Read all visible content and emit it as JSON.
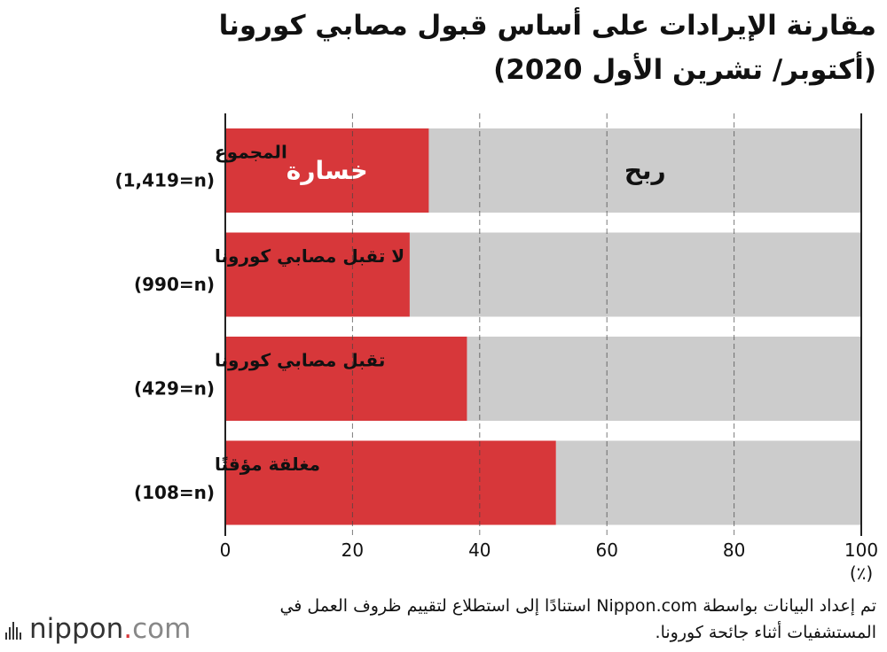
{
  "title": {
    "line1": "مقارنة الإيرادات على أساس قبول مصابي كورونا",
    "line2": "(أكتوبر/ تشرين الأول 2020)"
  },
  "chart_data": {
    "type": "bar",
    "orientation": "horizontal",
    "stacked": true,
    "categories": [
      {
        "label": "المجموع",
        "n": "(1,419=n)"
      },
      {
        "label": "لا تقبل مصابي كورونا",
        "n": "(990=n)"
      },
      {
        "label": "تقبل مصابي كورونا",
        "n": "(429=n)"
      },
      {
        "label": "مغلقة مؤقتًا",
        "n": "(108=n)"
      }
    ],
    "series": [
      {
        "name": "خسارة",
        "color": "#d7373a",
        "values": [
          32,
          29,
          38,
          52
        ]
      },
      {
        "name": "ربح",
        "color": "#cccccc",
        "values": [
          68,
          71,
          62,
          48
        ]
      }
    ],
    "xlim": [
      0,
      100
    ],
    "xticks": [
      "0",
      "20",
      "40",
      "60",
      "80",
      "100"
    ],
    "xunit": "(٪)"
  },
  "footer": {
    "note": "تم إعداد البيانات بواسطة Nippon.com استنادًا إلى استطلاع لتقييم ظروف العمل في المستشفيات أثناء جائحة كورونا.",
    "brand_name": "nippon",
    "brand_dot": ".",
    "brand_tld": "com"
  }
}
